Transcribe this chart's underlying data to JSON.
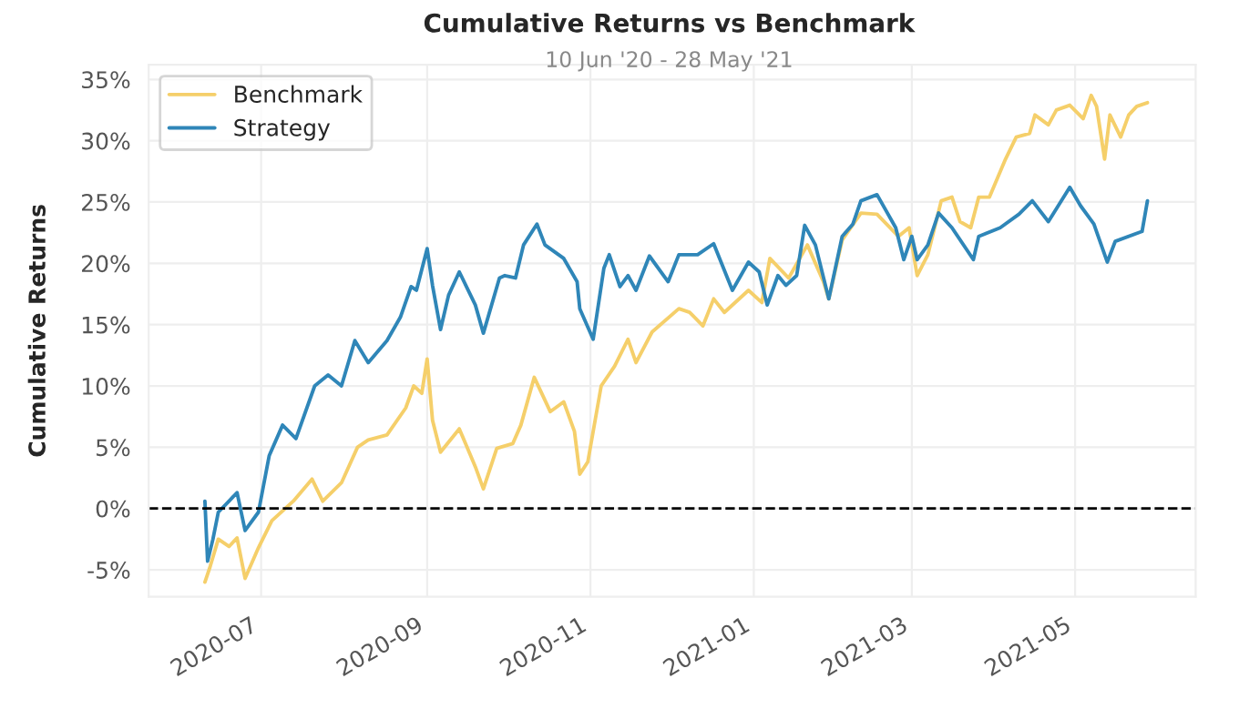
{
  "chart_data": {
    "type": "line",
    "title": "Cumulative Returns vs Benchmark",
    "subtitle": "10 Jun '20 - 28 May '21",
    "ylabel": "Cumulative Returns",
    "xlim": [
      "2020-05-20",
      "2021-06-15"
    ],
    "ylim": [
      -7.2,
      36.2
    ],
    "xticks": [
      {
        "value": "2020-07-01",
        "label": "2020-07"
      },
      {
        "value": "2020-09-01",
        "label": "2020-09"
      },
      {
        "value": "2020-11-01",
        "label": "2020-11"
      },
      {
        "value": "2021-01-01",
        "label": "2021-01"
      },
      {
        "value": "2021-03-01",
        "label": "2021-03"
      },
      {
        "value": "2021-05-01",
        "label": "2021-05"
      }
    ],
    "yticks": [
      {
        "value": -5,
        "label": "-5%"
      },
      {
        "value": 0,
        "label": "0%"
      },
      {
        "value": 5,
        "label": "5%"
      },
      {
        "value": 10,
        "label": "10%"
      },
      {
        "value": 15,
        "label": "15%"
      },
      {
        "value": 20,
        "label": "20%"
      },
      {
        "value": 25,
        "label": "25%"
      },
      {
        "value": 30,
        "label": "30%"
      },
      {
        "value": 35,
        "label": "35%"
      }
    ],
    "grid": true,
    "legend": "top left",
    "ref_lines": [
      {
        "axis": "y",
        "value": 0,
        "color": "#000000",
        "line_style": "dashed"
      }
    ],
    "series": [
      {
        "name": "Benchmark",
        "color": "#f5cf6a",
        "x": [
          "2020-06-10",
          "2020-06-12",
          "2020-06-15",
          "2020-06-19",
          "2020-06-22",
          "2020-06-25",
          "2020-06-30",
          "2020-07-05",
          "2020-07-13",
          "2020-07-20",
          "2020-07-24",
          "2020-07-31",
          "2020-08-06",
          "2020-08-10",
          "2020-08-17",
          "2020-08-24",
          "2020-08-27",
          "2020-08-30",
          "2020-09-01",
          "2020-09-03",
          "2020-09-06",
          "2020-09-13",
          "2020-09-19",
          "2020-09-22",
          "2020-09-27",
          "2020-10-03",
          "2020-10-06",
          "2020-10-11",
          "2020-10-17",
          "2020-10-22",
          "2020-10-26",
          "2020-10-28",
          "2020-10-31",
          "2020-11-05",
          "2020-11-10",
          "2020-11-15",
          "2020-11-18",
          "2020-11-24",
          "2020-12-04",
          "2020-12-08",
          "2020-12-13",
          "2020-12-17",
          "2020-12-21",
          "2020-12-30",
          "2021-01-04",
          "2021-01-07",
          "2021-01-14",
          "2021-01-21",
          "2021-01-27",
          "2021-01-29",
          "2021-02-03",
          "2021-02-10",
          "2021-02-16",
          "2021-02-24",
          "2021-02-28",
          "2021-03-03",
          "2021-03-07",
          "2021-03-12",
          "2021-03-16",
          "2021-03-19",
          "2021-03-23",
          "2021-03-26",
          "2021-03-30",
          "2021-04-05",
          "2021-04-09",
          "2021-04-14",
          "2021-04-16",
          "2021-04-21",
          "2021-04-24",
          "2021-04-29",
          "2021-05-04",
          "2021-05-07",
          "2021-05-09",
          "2021-05-12",
          "2021-05-14",
          "2021-05-18",
          "2021-05-21",
          "2021-05-24",
          "2021-05-28"
        ],
        "values": [
          -6.0,
          -4.7,
          -2.5,
          -3.1,
          -2.4,
          -5.7,
          -3.2,
          -1.0,
          0.6,
          2.4,
          0.6,
          2.1,
          5.0,
          5.6,
          6.0,
          8.2,
          10.0,
          9.4,
          12.2,
          7.2,
          4.6,
          6.5,
          3.4,
          1.6,
          4.9,
          5.3,
          6.8,
          10.7,
          7.9,
          8.7,
          6.3,
          2.8,
          3.8,
          10.0,
          11.6,
          13.8,
          11.9,
          14.4,
          16.3,
          16.0,
          14.9,
          17.1,
          16.0,
          17.8,
          16.8,
          20.4,
          18.8,
          21.5,
          18.5,
          17.1,
          21.9,
          24.1,
          24.0,
          22.2,
          22.9,
          19.0,
          20.7,
          25.1,
          25.4,
          23.4,
          22.9,
          25.4,
          25.4,
          28.5,
          30.3,
          30.6,
          32.1,
          31.3,
          32.5,
          32.9,
          31.8,
          33.7,
          32.8,
          28.5,
          32.1,
          30.3,
          32.1,
          32.8,
          33.1
        ]
      },
      {
        "name": "Strategy",
        "color": "#2f86b8",
        "x": [
          "2020-06-10",
          "2020-06-11",
          "2020-06-13",
          "2020-06-15",
          "2020-06-19",
          "2020-06-22",
          "2020-06-25",
          "2020-06-30",
          "2020-07-04",
          "2020-07-09",
          "2020-07-14",
          "2020-07-21",
          "2020-07-26",
          "2020-07-31",
          "2020-08-05",
          "2020-08-10",
          "2020-08-17",
          "2020-08-22",
          "2020-08-26",
          "2020-08-28",
          "2020-09-01",
          "2020-09-03",
          "2020-09-06",
          "2020-09-09",
          "2020-09-13",
          "2020-09-19",
          "2020-09-22",
          "2020-09-28",
          "2020-09-30",
          "2020-10-04",
          "2020-10-07",
          "2020-10-12",
          "2020-10-15",
          "2020-10-22",
          "2020-10-27",
          "2020-10-28",
          "2020-11-02",
          "2020-11-06",
          "2020-11-08",
          "2020-11-12",
          "2020-11-15",
          "2020-11-18",
          "2020-11-23",
          "2020-11-30",
          "2020-12-04",
          "2020-12-11",
          "2020-12-17",
          "2020-12-24",
          "2020-12-30",
          "2021-01-03",
          "2021-01-06",
          "2021-01-10",
          "2021-01-13",
          "2021-01-17",
          "2021-01-20",
          "2021-01-24",
          "2021-01-29",
          "2021-02-03",
          "2021-02-07",
          "2021-02-10",
          "2021-02-16",
          "2021-02-23",
          "2021-02-26",
          "2021-03-01",
          "2021-03-03",
          "2021-03-07",
          "2021-03-11",
          "2021-03-16",
          "2021-03-24",
          "2021-03-26",
          "2021-04-03",
          "2021-04-10",
          "2021-04-15",
          "2021-04-21",
          "2021-04-29",
          "2021-05-03",
          "2021-05-08",
          "2021-05-13",
          "2021-05-16",
          "2021-05-26",
          "2021-05-28"
        ],
        "values": [
          0.6,
          -4.3,
          -2.5,
          -0.3,
          0.6,
          1.3,
          -1.8,
          -0.3,
          4.3,
          6.8,
          5.7,
          10.0,
          10.9,
          10.0,
          13.7,
          11.9,
          13.7,
          15.6,
          18.1,
          17.8,
          21.2,
          18.2,
          14.6,
          17.4,
          19.3,
          16.6,
          14.3,
          18.8,
          19.0,
          18.8,
          21.5,
          23.2,
          21.5,
          20.4,
          18.5,
          16.3,
          13.8,
          19.6,
          20.7,
          18.1,
          19.0,
          17.8,
          20.6,
          18.5,
          20.7,
          20.7,
          21.6,
          17.8,
          20.1,
          19.3,
          16.6,
          19.0,
          18.2,
          19.0,
          23.1,
          21.5,
          17.1,
          22.2,
          23.2,
          25.1,
          25.6,
          22.9,
          20.3,
          22.2,
          20.3,
          21.5,
          24.1,
          22.9,
          20.3,
          22.2,
          22.9,
          24.0,
          25.1,
          23.4,
          26.2,
          24.7,
          23.2,
          20.1,
          21.8,
          22.6,
          25.1
        ]
      }
    ]
  }
}
